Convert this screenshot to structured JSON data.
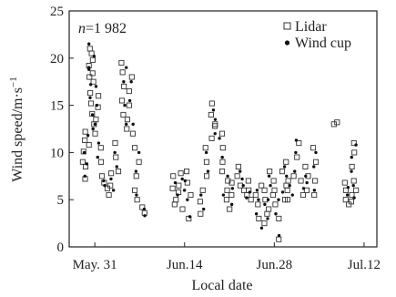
{
  "chart_data": {
    "type": "scatter",
    "annotation_n_label": "n",
    "annotation_n_value": "=1 982",
    "xlabel": "Local date",
    "ylabel": "Wind speed/m·s",
    "ylabel_unit_exponent": "−1",
    "x_ticks": [
      {
        "value": "05-31",
        "label": "May. 31"
      },
      {
        "value": "06-14",
        "label": "Jun.14"
      },
      {
        "value": "06-28",
        "label": "Jun.28"
      },
      {
        "value": "07-12",
        "label": "Jul.12"
      }
    ],
    "y_ticks": [
      "0",
      "5",
      "10",
      "15",
      "20",
      "25"
    ],
    "xlim": [
      "05-27",
      "07-14"
    ],
    "ylim": [
      0,
      25
    ],
    "grid": false,
    "legend_position": "top-right",
    "series": [
      {
        "name": "Lidar",
        "marker": "open-square",
        "color": "#333333",
        "points": [
          [
            "05-29",
            7.2
          ],
          [
            "05-29",
            8.5
          ],
          [
            "05-29",
            9.0
          ],
          [
            "05-29",
            10.1
          ],
          [
            "05-29",
            11.3
          ],
          [
            "05-29",
            12.2
          ],
          [
            "05-30",
            10.8
          ],
          [
            "05-30",
            13.0
          ],
          [
            "05-30",
            14.1
          ],
          [
            "05-30",
            15.2
          ],
          [
            "05-30",
            16.3
          ],
          [
            "05-30",
            17.5
          ],
          [
            "05-30",
            18.4
          ],
          [
            "05-30",
            19.2
          ],
          [
            "05-30",
            20.5
          ],
          [
            "05-30",
            21.0
          ],
          [
            "05-30",
            19.8
          ],
          [
            "05-30",
            18.0
          ],
          [
            "05-31",
            16.0
          ],
          [
            "05-31",
            14.8
          ],
          [
            "05-31",
            13.5
          ],
          [
            "05-31",
            12.0
          ],
          [
            "05-31",
            10.5
          ],
          [
            "05-31",
            9.0
          ],
          [
            "06-01",
            7.5
          ],
          [
            "06-01",
            6.8
          ],
          [
            "06-01",
            6.2
          ],
          [
            "06-02",
            5.5
          ],
          [
            "06-02",
            6.5
          ],
          [
            "06-02",
            7.8
          ],
          [
            "06-03",
            8.0
          ],
          [
            "06-03",
            9.5
          ],
          [
            "06-03",
            11.0
          ],
          [
            "06-04",
            12.5
          ],
          [
            "06-04",
            14.0
          ],
          [
            "06-04",
            15.5
          ],
          [
            "06-04",
            17.0
          ],
          [
            "06-04",
            18.5
          ],
          [
            "06-04",
            19.5
          ],
          [
            "06-05",
            18.0
          ],
          [
            "06-05",
            16.5
          ],
          [
            "06-05",
            15.0
          ],
          [
            "06-05",
            13.5
          ],
          [
            "06-05",
            12.0
          ],
          [
            "06-06",
            10.5
          ],
          [
            "06-06",
            9.0
          ],
          [
            "06-06",
            7.5
          ],
          [
            "06-06",
            6.0
          ],
          [
            "06-06",
            5.0
          ],
          [
            "06-07",
            4.2
          ],
          [
            "06-07",
            3.6
          ],
          [
            "06-12",
            5.0
          ],
          [
            "06-12",
            6.2
          ],
          [
            "06-12",
            7.5
          ],
          [
            "06-12",
            4.5
          ],
          [
            "06-13",
            6.5
          ],
          [
            "06-13",
            5.8
          ],
          [
            "06-13",
            7.8
          ],
          [
            "06-13",
            4.0
          ],
          [
            "06-14",
            3.0
          ],
          [
            "06-14",
            5.5
          ],
          [
            "06-14",
            8.0
          ],
          [
            "06-14",
            6.8
          ],
          [
            "06-16",
            3.5
          ],
          [
            "06-16",
            4.8
          ],
          [
            "06-16",
            6.0
          ],
          [
            "06-17",
            7.5
          ],
          [
            "06-17",
            9.0
          ],
          [
            "06-17",
            10.5
          ],
          [
            "06-18",
            11.5
          ],
          [
            "06-18",
            12.8
          ],
          [
            "06-18",
            14.0
          ],
          [
            "06-18",
            15.2
          ],
          [
            "06-18",
            13.0
          ],
          [
            "06-19",
            12.0
          ],
          [
            "06-19",
            10.5
          ],
          [
            "06-19",
            9.0
          ],
          [
            "06-19",
            8.0
          ],
          [
            "06-20",
            7.0
          ],
          [
            "06-20",
            6.0
          ],
          [
            "06-20",
            5.0
          ],
          [
            "06-21",
            4.0
          ],
          [
            "06-21",
            5.5
          ],
          [
            "06-21",
            6.8
          ],
          [
            "06-22",
            7.5
          ],
          [
            "06-22",
            8.5
          ],
          [
            "06-22",
            6.5
          ],
          [
            "06-23",
            5.5
          ],
          [
            "06-23",
            6.0
          ],
          [
            "06-23",
            7.0
          ],
          [
            "06-24",
            6.0
          ],
          [
            "06-24",
            5.0
          ],
          [
            "06-25",
            3.0
          ],
          [
            "06-25",
            4.5
          ],
          [
            "06-25",
            5.5
          ],
          [
            "06-25",
            6.5
          ],
          [
            "06-26",
            2.5
          ],
          [
            "06-26",
            3.5
          ],
          [
            "06-26",
            5.0
          ],
          [
            "06-26",
            6.0
          ],
          [
            "06-27",
            4.0
          ],
          [
            "06-27",
            5.5
          ],
          [
            "06-27",
            7.0
          ],
          [
            "06-27",
            8.0
          ],
          [
            "06-28",
            6.0
          ],
          [
            "06-28",
            4.5
          ],
          [
            "06-28",
            3.0
          ],
          [
            "06-28",
            0.8
          ],
          [
            "06-29",
            5.0
          ],
          [
            "06-29",
            6.5
          ],
          [
            "06-29",
            8.0
          ],
          [
            "06-29",
            9.0
          ],
          [
            "06-30",
            7.0
          ],
          [
            "06-30",
            6.0
          ],
          [
            "06-30",
            5.0
          ],
          [
            "07-01",
            7.5
          ],
          [
            "07-01",
            9.5
          ],
          [
            "07-01",
            11.0
          ],
          [
            "07-02",
            8.5
          ],
          [
            "07-02",
            7.0
          ],
          [
            "07-02",
            5.5
          ],
          [
            "07-03",
            6.0
          ],
          [
            "07-03",
            7.5
          ],
          [
            "07-04",
            9.0
          ],
          [
            "07-04",
            10.5
          ],
          [
            "07-04",
            7.0
          ],
          [
            "07-04",
            5.5
          ],
          [
            "07-07",
            13.0
          ],
          [
            "07-07",
            13.2
          ],
          [
            "07-09",
            5.0
          ],
          [
            "07-09",
            6.0
          ],
          [
            "07-09",
            6.8
          ],
          [
            "07-09",
            4.5
          ],
          [
            "07-10",
            5.5
          ],
          [
            "07-10",
            7.0
          ],
          [
            "07-10",
            8.5
          ],
          [
            "07-10",
            10.0
          ],
          [
            "07-10",
            11.0
          ],
          [
            "07-10",
            4.8
          ],
          [
            "07-10",
            6.0
          ]
        ]
      },
      {
        "name": "Wind cup",
        "marker": "filled-dot",
        "color": "#111111",
        "points": [
          [
            "05-29",
            7.5
          ],
          [
            "05-29",
            8.8
          ],
          [
            "05-29",
            10.0
          ],
          [
            "05-29",
            11.8
          ],
          [
            "05-30",
            12.5
          ],
          [
            "05-30",
            14.0
          ],
          [
            "05-30",
            15.8
          ],
          [
            "05-30",
            17.2
          ],
          [
            "05-30",
            18.8
          ],
          [
            "05-30",
            20.2
          ],
          [
            "05-30",
            21.5
          ],
          [
            "05-30",
            19.0
          ],
          [
            "05-31",
            17.0
          ],
          [
            "05-31",
            15.0
          ],
          [
            "05-31",
            13.0
          ],
          [
            "05-31",
            11.0
          ],
          [
            "05-31",
            9.5
          ],
          [
            "06-01",
            7.0
          ],
          [
            "06-01",
            6.5
          ],
          [
            "06-02",
            6.0
          ],
          [
            "06-02",
            7.2
          ],
          [
            "06-03",
            8.5
          ],
          [
            "06-03",
            10.0
          ],
          [
            "06-04",
            13.0
          ],
          [
            "06-04",
            15.0
          ],
          [
            "06-04",
            17.5
          ],
          [
            "06-04",
            19.0
          ],
          [
            "06-05",
            17.5
          ],
          [
            "06-05",
            15.5
          ],
          [
            "06-05",
            13.0
          ],
          [
            "06-06",
            10.0
          ],
          [
            "06-06",
            8.0
          ],
          [
            "06-06",
            5.5
          ],
          [
            "06-07",
            4.0
          ],
          [
            "06-07",
            3.3
          ],
          [
            "06-12",
            5.5
          ],
          [
            "06-12",
            6.8
          ],
          [
            "06-13",
            6.0
          ],
          [
            "06-13",
            7.2
          ],
          [
            "06-14",
            3.2
          ],
          [
            "06-14",
            5.0
          ],
          [
            "06-14",
            7.0
          ],
          [
            "06-16",
            4.0
          ],
          [
            "06-16",
            5.5
          ],
          [
            "06-17",
            8.0
          ],
          [
            "06-17",
            10.0
          ],
          [
            "06-18",
            12.0
          ],
          [
            "06-18",
            13.5
          ],
          [
            "06-18",
            14.5
          ],
          [
            "06-19",
            11.5
          ],
          [
            "06-19",
            9.5
          ],
          [
            "06-20",
            7.5
          ],
          [
            "06-20",
            5.5
          ],
          [
            "06-21",
            4.5
          ],
          [
            "06-21",
            6.2
          ],
          [
            "06-22",
            7.2
          ],
          [
            "06-22",
            8.0
          ],
          [
            "06-23",
            6.5
          ],
          [
            "06-23",
            5.2
          ],
          [
            "06-24",
            5.8
          ],
          [
            "06-25",
            3.5
          ],
          [
            "06-25",
            5.0
          ],
          [
            "06-25",
            6.0
          ],
          [
            "06-26",
            2.0
          ],
          [
            "06-26",
            3.0
          ],
          [
            "06-26",
            4.5
          ],
          [
            "06-27",
            5.0
          ],
          [
            "06-27",
            6.5
          ],
          [
            "06-27",
            7.5
          ],
          [
            "06-28",
            5.0
          ],
          [
            "06-28",
            3.5
          ],
          [
            "06-28",
            1.2
          ],
          [
            "06-29",
            5.8
          ],
          [
            "06-29",
            7.5
          ],
          [
            "06-29",
            8.5
          ],
          [
            "06-30",
            6.5
          ],
          [
            "06-30",
            5.5
          ],
          [
            "07-01",
            8.0
          ],
          [
            "07-01",
            10.0
          ],
          [
            "07-01",
            11.3
          ],
          [
            "07-02",
            7.5
          ],
          [
            "07-02",
            6.2
          ],
          [
            "07-03",
            6.8
          ],
          [
            "07-04",
            8.5
          ],
          [
            "07-04",
            10.0
          ],
          [
            "07-04",
            6.0
          ],
          [
            "07-09",
            5.5
          ],
          [
            "07-09",
            6.3
          ],
          [
            "07-10",
            6.5
          ],
          [
            "07-10",
            8.0
          ],
          [
            "07-10",
            9.5
          ],
          [
            "07-10",
            10.8
          ],
          [
            "07-10",
            5.2
          ]
        ]
      }
    ]
  }
}
